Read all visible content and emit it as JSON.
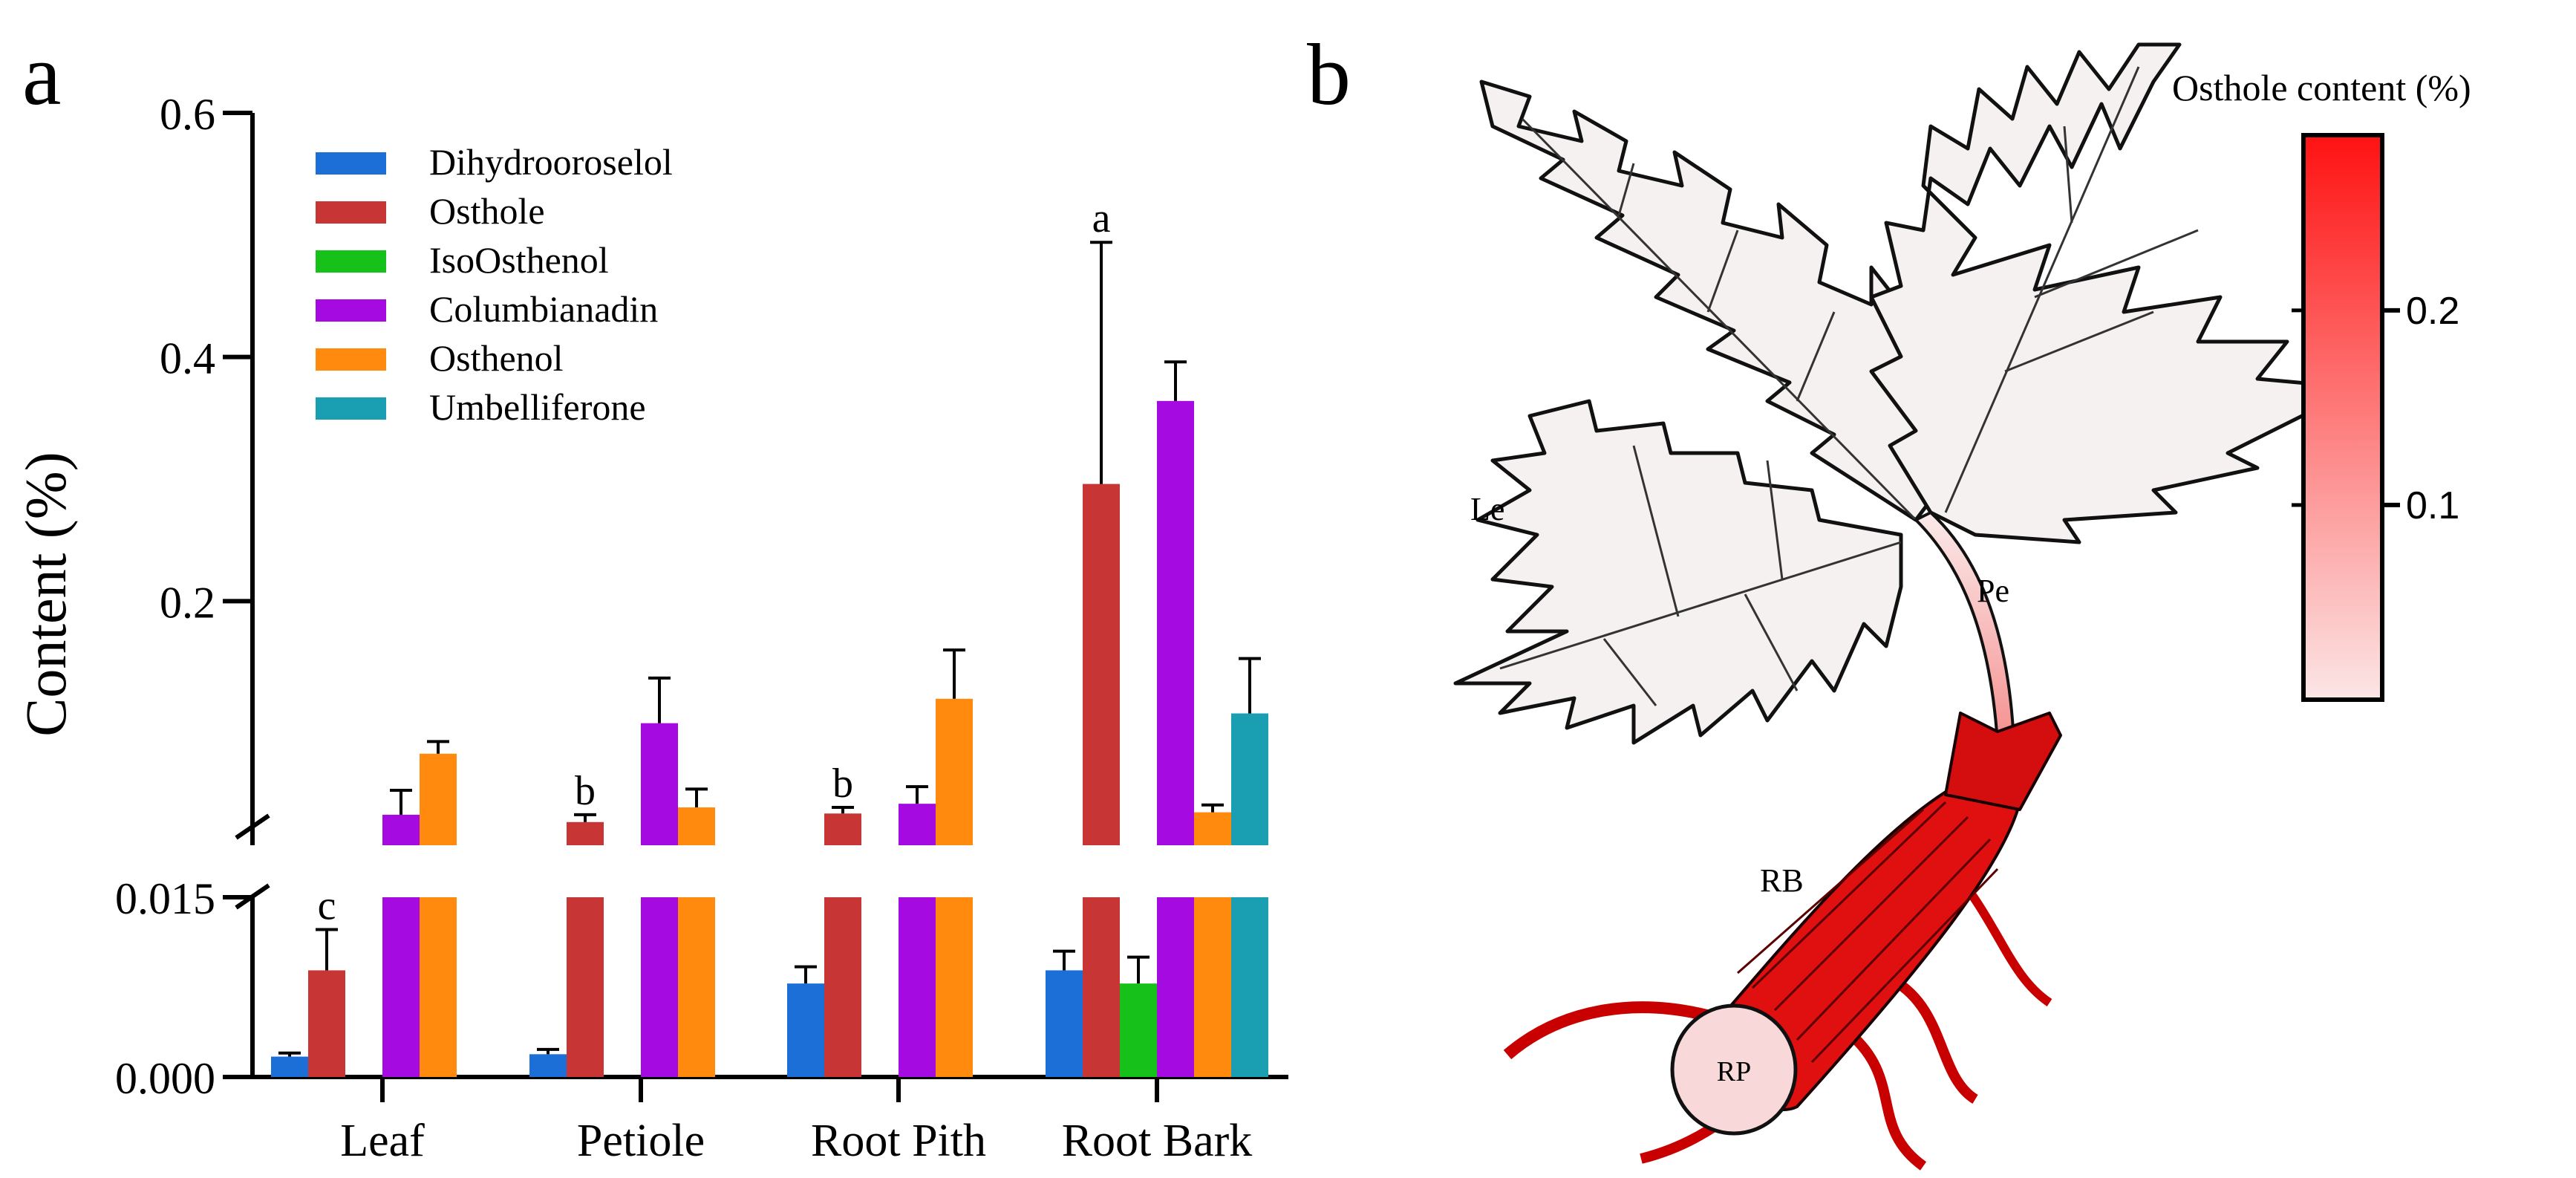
{
  "panel_a": {
    "label": "a"
  },
  "panel_b": {
    "label": "b"
  },
  "chart_data": {
    "type": "bar",
    "ylabel": "Content (%)",
    "categories": [
      "Leaf",
      "Petiole",
      "Root Pith",
      "Root Bark"
    ],
    "axis_break": true,
    "lower_segment": {
      "ylim": [
        0.0,
        0.015
      ],
      "ticks": [
        "0.000",
        "0.015"
      ]
    },
    "upper_segment": {
      "ylim": [
        0.0,
        0.6
      ],
      "ticks": [
        "0.2",
        "0.4",
        "0.6"
      ]
    },
    "legend_position": "top-left",
    "grid": false,
    "series": [
      {
        "name": "Dihydrooroselol",
        "color": "#1c6fd6",
        "values": [
          0.0017,
          0.0019,
          0.0078,
          0.0089
        ],
        "errors": [
          0.0003,
          0.0004,
          0.0014,
          0.0016
        ]
      },
      {
        "name": "Osthole",
        "color": "#c83535",
        "values": [
          0.0089,
          0.019,
          0.026,
          0.296
        ],
        "errors": [
          0.0034,
          0.006,
          0.005,
          0.198
        ]
      },
      {
        "name": "IsoOsthenol",
        "color": "#16c21a",
        "values": [
          null,
          null,
          null,
          0.0078
        ],
        "errors": [
          null,
          null,
          null,
          0.0022
        ]
      },
      {
        "name": "Columbianadin",
        "color": "#a50ae0",
        "values": [
          0.025,
          0.1,
          0.034,
          0.364
        ],
        "errors": [
          0.02,
          0.037,
          0.014,
          0.032
        ]
      },
      {
        "name": "Osthenol",
        "color": "#ff8a0d",
        "values": [
          0.075,
          0.031,
          0.12,
          0.027
        ],
        "errors": [
          0.01,
          0.015,
          0.04,
          0.006
        ]
      },
      {
        "name": "Umbelliferone",
        "color": "#1a9eb2",
        "values": [
          null,
          null,
          null,
          0.108
        ],
        "errors": [
          null,
          null,
          null,
          0.045
        ]
      }
    ],
    "annotations": [
      {
        "text": "c",
        "category": "Leaf",
        "series": "Osthole"
      },
      {
        "text": "b",
        "category": "Petiole",
        "series": "Osthole"
      },
      {
        "text": "b",
        "category": "Root Pith",
        "series": "Osthole"
      },
      {
        "text": "a",
        "category": "Root Bark",
        "series": "Osthole"
      }
    ]
  },
  "illustration": {
    "labels": {
      "leaf": "Le",
      "petiole": "Pe",
      "root_bark": "RB",
      "root_pith": "RP"
    },
    "colorbar": {
      "title": "Osthole content (%)",
      "ticks": [
        "0.1",
        "0.2"
      ],
      "tick_values": [
        0.1,
        0.2
      ],
      "range": [
        0.0,
        0.29
      ],
      "low_color": "#fce6e6",
      "high_color": "#ff1212"
    }
  }
}
